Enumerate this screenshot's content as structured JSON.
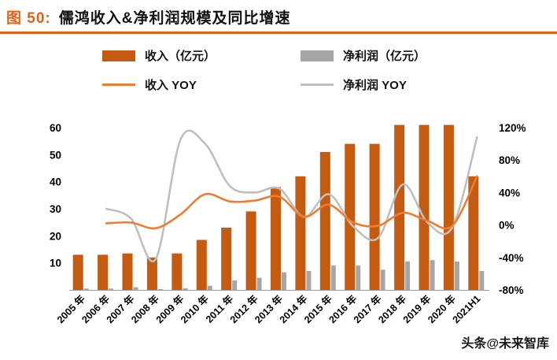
{
  "header": {
    "figure_label": "图 50:",
    "title": "儒鸿收入&净利润规模及同比增速",
    "accent_color": "#e3610f"
  },
  "watermark": {
    "text": "头条@未来智库"
  },
  "chart_data": {
    "type": "bar",
    "subtype": "combo-bar-line-dual-axis",
    "title": "儒鸿收入&净利润规模及同比增速",
    "categories": [
      "2005 年",
      "2006 年",
      "2007 年",
      "2008 年",
      "2009 年",
      "2010 年",
      "2011 年",
      "2012 年",
      "2013 年",
      "2014 年",
      "2015 年",
      "2016 年",
      "2017 年",
      "2018 年",
      "2019 年",
      "2020 年",
      "2021H1"
    ],
    "series": [
      {
        "name": "收入（亿元）",
        "type": "bar",
        "axis": "left",
        "color": "#c55a11",
        "values": [
          13,
          13,
          13.5,
          12,
          13.5,
          18.5,
          23,
          29,
          38,
          42,
          51,
          54,
          54,
          61,
          61,
          61,
          42
        ]
      },
      {
        "name": "净利润（亿元）",
        "type": "bar",
        "axis": "left",
        "color": "#a6a6a6",
        "values": [
          0.5,
          0.5,
          1,
          0.3,
          0.6,
          1.5,
          3.5,
          4.5,
          6.5,
          7,
          9,
          9,
          7.5,
          10.5,
          11,
          10.5,
          7
        ]
      },
      {
        "name": "收入 YOY",
        "type": "line",
        "axis": "right",
        "color": "#ed7d31",
        "values": [
          null,
          2,
          3,
          -4,
          13,
          38,
          29,
          30,
          35,
          10,
          25,
          3,
          -1,
          15,
          5,
          -1,
          60
        ]
      },
      {
        "name": "净利润 YOY",
        "type": "line",
        "axis": "right",
        "color": "#bfbfbf",
        "values": [
          null,
          20,
          8,
          -42,
          105,
          100,
          48,
          40,
          45,
          10,
          38,
          -2,
          -16,
          50,
          3,
          -3,
          108
        ]
      }
    ],
    "left_axis": {
      "min": 0,
      "max": 60,
      "ticks": [
        10,
        20,
        30,
        40,
        50,
        60
      ]
    },
    "right_axis": {
      "min": -80,
      "max": 120,
      "tick_values": [
        -80,
        -40,
        0,
        40,
        80,
        120
      ],
      "tick_labels": [
        "-80%",
        "-40%",
        "0%",
        "40%",
        "80%",
        "120%"
      ]
    },
    "grid": false,
    "legend_position": "top"
  }
}
